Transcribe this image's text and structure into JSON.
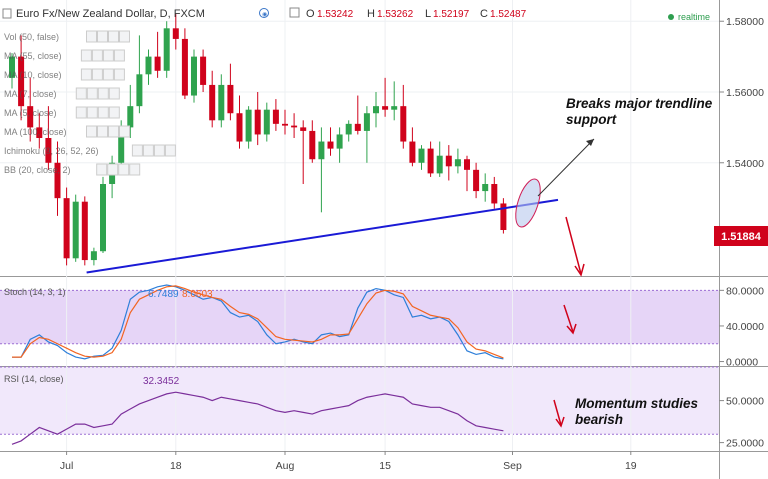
{
  "header": {
    "title": "Euro Fx/New Zealand Dollar, D, FXCM",
    "o_label": "O",
    "o": "1.53242",
    "h_label": "H",
    "h": "1.53262",
    "l_label": "L",
    "l": "1.52197",
    "c_label": "C",
    "c": "1.52487",
    "realtime": "realtime"
  },
  "indicators": [
    "Vol (50, false)",
    "MA (55, close)",
    "MA (10, close)",
    "MA (7, close)",
    "MA (5, close)",
    "MA (100, close)",
    "Ichimoku (9, 26, 52, 26)",
    "BB (20, close, 2)"
  ],
  "stoch": {
    "label": "Stoch (14, 3, 1)",
    "k": "6.7489",
    "d": "8.0603"
  },
  "rsi": {
    "label": "RSI (14, close)",
    "value": "32.3452"
  },
  "annotations": {
    "breaks": [
      "Breaks major trendline",
      "support"
    ],
    "momentum": [
      "Momentum studies",
      "bearish"
    ]
  },
  "chart_data": [
    {
      "type": "candlestick",
      "title": "Euro Fx/New Zealand Dollar, D, FXCM",
      "ylim": [
        1.508,
        1.586
      ],
      "y_ticks": [
        "1.58000",
        "1.56000",
        "1.54000"
      ],
      "current_price": "1.51884",
      "x_ticks": [
        "Jul",
        "18",
        "Aug",
        "15",
        "Sep",
        "19"
      ],
      "candles": [
        {
          "o": 1.564,
          "h": 1.571,
          "l": 1.561,
          "c": 1.57
        },
        {
          "o": 1.57,
          "h": 1.576,
          "l": 1.552,
          "c": 1.556
        },
        {
          "o": 1.556,
          "h": 1.564,
          "l": 1.546,
          "c": 1.55
        },
        {
          "o": 1.55,
          "h": 1.554,
          "l": 1.544,
          "c": 1.547
        },
        {
          "o": 1.547,
          "h": 1.556,
          "l": 1.538,
          "c": 1.54
        },
        {
          "o": 1.54,
          "h": 1.546,
          "l": 1.525,
          "c": 1.53
        },
        {
          "o": 1.53,
          "h": 1.533,
          "l": 1.511,
          "c": 1.513
        },
        {
          "o": 1.513,
          "h": 1.531,
          "l": 1.512,
          "c": 1.529
        },
        {
          "o": 1.529,
          "h": 1.5305,
          "l": 1.511,
          "c": 1.5125
        },
        {
          "o": 1.5125,
          "h": 1.516,
          "l": 1.511,
          "c": 1.515
        },
        {
          "o": 1.515,
          "h": 1.536,
          "l": 1.5145,
          "c": 1.534
        },
        {
          "o": 1.534,
          "h": 1.542,
          "l": 1.53,
          "c": 1.54
        },
        {
          "o": 1.54,
          "h": 1.552,
          "l": 1.538,
          "c": 1.55
        },
        {
          "o": 1.55,
          "h": 1.562,
          "l": 1.547,
          "c": 1.556
        },
        {
          "o": 1.556,
          "h": 1.576,
          "l": 1.554,
          "c": 1.565
        },
        {
          "o": 1.565,
          "h": 1.572,
          "l": 1.562,
          "c": 1.57
        },
        {
          "o": 1.57,
          "h": 1.577,
          "l": 1.564,
          "c": 1.566
        },
        {
          "o": 1.566,
          "h": 1.58,
          "l": 1.564,
          "c": 1.578
        },
        {
          "o": 1.578,
          "h": 1.582,
          "l": 1.572,
          "c": 1.575
        },
        {
          "o": 1.575,
          "h": 1.578,
          "l": 1.558,
          "c": 1.559
        },
        {
          "o": 1.559,
          "h": 1.572,
          "l": 1.557,
          "c": 1.57
        },
        {
          "o": 1.57,
          "h": 1.572,
          "l": 1.56,
          "c": 1.562
        },
        {
          "o": 1.562,
          "h": 1.566,
          "l": 1.55,
          "c": 1.552
        },
        {
          "o": 1.552,
          "h": 1.565,
          "l": 1.55,
          "c": 1.562
        },
        {
          "o": 1.562,
          "h": 1.568,
          "l": 1.552,
          "c": 1.554
        },
        {
          "o": 1.554,
          "h": 1.559,
          "l": 1.544,
          "c": 1.546
        },
        {
          "o": 1.546,
          "h": 1.556,
          "l": 1.544,
          "c": 1.555
        },
        {
          "o": 1.555,
          "h": 1.56,
          "l": 1.545,
          "c": 1.548
        },
        {
          "o": 1.548,
          "h": 1.557,
          "l": 1.546,
          "c": 1.555
        },
        {
          "o": 1.555,
          "h": 1.558,
          "l": 1.549,
          "c": 1.551
        },
        {
          "o": 1.551,
          "h": 1.555,
          "l": 1.548,
          "c": 1.5505
        },
        {
          "o": 1.5505,
          "h": 1.554,
          "l": 1.547,
          "c": 1.55
        },
        {
          "o": 1.55,
          "h": 1.552,
          "l": 1.534,
          "c": 1.549
        },
        {
          "o": 1.549,
          "h": 1.552,
          "l": 1.54,
          "c": 1.541
        },
        {
          "o": 1.541,
          "h": 1.55,
          "l": 1.526,
          "c": 1.546
        },
        {
          "o": 1.546,
          "h": 1.55,
          "l": 1.542,
          "c": 1.544
        },
        {
          "o": 1.544,
          "h": 1.55,
          "l": 1.54,
          "c": 1.548
        },
        {
          "o": 1.548,
          "h": 1.552,
          "l": 1.546,
          "c": 1.551
        },
        {
          "o": 1.551,
          "h": 1.559,
          "l": 1.548,
          "c": 1.549
        },
        {
          "o": 1.549,
          "h": 1.556,
          "l": 1.54,
          "c": 1.554
        },
        {
          "o": 1.554,
          "h": 1.56,
          "l": 1.55,
          "c": 1.556
        },
        {
          "o": 1.556,
          "h": 1.564,
          "l": 1.553,
          "c": 1.555
        },
        {
          "o": 1.555,
          "h": 1.563,
          "l": 1.552,
          "c": 1.556
        },
        {
          "o": 1.556,
          "h": 1.562,
          "l": 1.544,
          "c": 1.546
        },
        {
          "o": 1.546,
          "h": 1.55,
          "l": 1.539,
          "c": 1.54
        },
        {
          "o": 1.54,
          "h": 1.545,
          "l": 1.538,
          "c": 1.544
        },
        {
          "o": 1.544,
          "h": 1.546,
          "l": 1.536,
          "c": 1.537
        },
        {
          "o": 1.537,
          "h": 1.546,
          "l": 1.536,
          "c": 1.542
        },
        {
          "o": 1.542,
          "h": 1.545,
          "l": 1.535,
          "c": 1.539
        },
        {
          "o": 1.539,
          "h": 1.544,
          "l": 1.537,
          "c": 1.541
        },
        {
          "o": 1.541,
          "h": 1.542,
          "l": 1.532,
          "c": 1.538
        },
        {
          "o": 1.538,
          "h": 1.54,
          "l": 1.53,
          "c": 1.532
        },
        {
          "o": 1.532,
          "h": 1.537,
          "l": 1.529,
          "c": 1.534
        },
        {
          "o": 1.534,
          "h": 1.536,
          "l": 1.527,
          "c": 1.5285
        },
        {
          "o": 1.5285,
          "h": 1.53,
          "l": 1.52,
          "c": 1.521
        }
      ],
      "trendline": {
        "from": {
          "x": 8.2,
          "y": 1.509
        },
        "to": {
          "x": 60,
          "y": 1.5295
        }
      }
    },
    {
      "type": "line",
      "title": "Stoch (14, 3, 1)",
      "ylim": [
        -5,
        95
      ],
      "y_ticks": [
        "80.0000",
        "40.0000",
        "0.0000"
      ],
      "levels": [
        80,
        20
      ],
      "series": [
        {
          "name": "6.7489",
          "color": "#2e7fd9",
          "values": [
            5,
            5,
            25,
            30,
            22,
            18,
            10,
            5,
            3,
            6,
            7,
            15,
            35,
            70,
            78,
            80,
            84,
            86,
            84,
            80,
            75,
            70,
            72,
            68,
            55,
            50,
            52,
            45,
            30,
            20,
            22,
            25,
            22,
            20,
            30,
            32,
            28,
            30,
            60,
            78,
            82,
            80,
            75,
            72,
            50,
            52,
            48,
            50,
            45,
            30,
            12,
            8,
            10,
            5,
            3
          ]
        },
        {
          "name": "8.0603",
          "color": "#f26522",
          "values": [
            5,
            5,
            20,
            27,
            25,
            20,
            15,
            10,
            6,
            5,
            6,
            10,
            25,
            55,
            70,
            75,
            80,
            84,
            85,
            82,
            78,
            75,
            72,
            70,
            62,
            55,
            53,
            48,
            38,
            28,
            25,
            24,
            23,
            22,
            25,
            30,
            30,
            31,
            48,
            65,
            77,
            80,
            79,
            76,
            62,
            57,
            52,
            50,
            48,
            38,
            22,
            14,
            12,
            8,
            4
          ]
        }
      ]
    },
    {
      "type": "line",
      "title": "RSI (14, close)",
      "ylim": [
        20,
        70
      ],
      "y_ticks": [
        "50.0000",
        "25.0000"
      ],
      "levels": [
        70,
        30
      ],
      "series": [
        {
          "name": "32.3452",
          "color": "#7b2f9b",
          "values": [
            24,
            26,
            30,
            34,
            32,
            30,
            33,
            36,
            36,
            34,
            35,
            36,
            42,
            45,
            48,
            50,
            52,
            54,
            55,
            54,
            53,
            52,
            50,
            52,
            51,
            50,
            49,
            48,
            46,
            44,
            43,
            44,
            43,
            42,
            44,
            45,
            46,
            47,
            50,
            52,
            53,
            54,
            53,
            52,
            48,
            47,
            46,
            46,
            44,
            42,
            38,
            35,
            34,
            33,
            32
          ]
        }
      ]
    }
  ]
}
